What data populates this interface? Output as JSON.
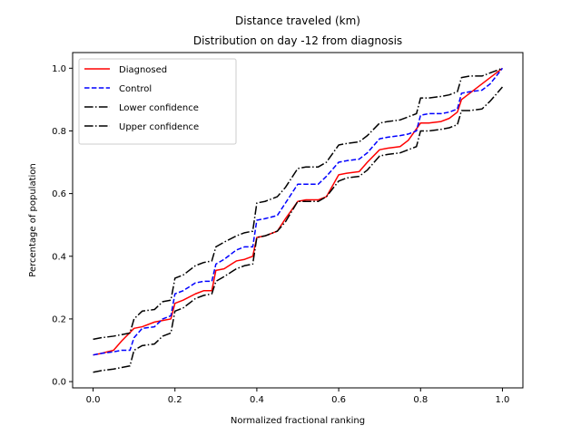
{
  "chart_data": {
    "type": "line",
    "title": "Distance traveled (km)",
    "subtitle": "Distribution on day -12 from diagnosis",
    "xlabel": "Normalized fractional ranking",
    "ylabel": "Percentage of population",
    "xlim": [
      -0.05,
      1.05
    ],
    "ylim": [
      -0.02,
      1.05
    ],
    "xticks": [
      0.0,
      0.2,
      0.4,
      0.6,
      0.8,
      1.0
    ],
    "xtick_labels": [
      "0.0",
      "0.2",
      "0.4",
      "0.6",
      "0.8",
      "1.0"
    ],
    "yticks": [
      0.0,
      0.2,
      0.4,
      0.6,
      0.8,
      1.0
    ],
    "ytick_labels": [
      "0.0",
      "0.2",
      "0.4",
      "0.6",
      "0.8",
      "1.0"
    ],
    "grid": false,
    "legend_position": "top-left",
    "series": [
      {
        "name": "Diagnosed",
        "color": "#ff0000",
        "style": "solid",
        "x": [
          0.0,
          0.02,
          0.05,
          0.07,
          0.1,
          0.12,
          0.15,
          0.17,
          0.19,
          0.2,
          0.22,
          0.25,
          0.27,
          0.29,
          0.3,
          0.32,
          0.35,
          0.37,
          0.39,
          0.4,
          0.42,
          0.45,
          0.47,
          0.5,
          0.52,
          0.55,
          0.57,
          0.6,
          0.62,
          0.65,
          0.67,
          0.7,
          0.72,
          0.75,
          0.77,
          0.8,
          0.82,
          0.85,
          0.87,
          0.89,
          0.9,
          0.92,
          0.95,
          1.0
        ],
        "y": [
          0.085,
          0.09,
          0.1,
          0.13,
          0.17,
          0.175,
          0.19,
          0.195,
          0.2,
          0.25,
          0.26,
          0.28,
          0.29,
          0.29,
          0.355,
          0.36,
          0.385,
          0.39,
          0.4,
          0.46,
          0.465,
          0.48,
          0.52,
          0.575,
          0.58,
          0.58,
          0.59,
          0.66,
          0.665,
          0.67,
          0.7,
          0.74,
          0.745,
          0.75,
          0.77,
          0.825,
          0.825,
          0.83,
          0.84,
          0.86,
          0.9,
          0.92,
          0.95,
          1.0
        ]
      },
      {
        "name": "Control",
        "color": "#0000ff",
        "style": "dashed",
        "x": [
          0.0,
          0.02,
          0.05,
          0.07,
          0.09,
          0.1,
          0.12,
          0.15,
          0.17,
          0.19,
          0.2,
          0.22,
          0.25,
          0.27,
          0.29,
          0.3,
          0.32,
          0.35,
          0.37,
          0.39,
          0.4,
          0.42,
          0.45,
          0.47,
          0.5,
          0.52,
          0.55,
          0.57,
          0.6,
          0.62,
          0.65,
          0.67,
          0.7,
          0.72,
          0.75,
          0.77,
          0.79,
          0.8,
          0.82,
          0.85,
          0.87,
          0.89,
          0.9,
          0.92,
          0.95,
          0.97,
          1.0
        ],
        "y": [
          0.085,
          0.09,
          0.095,
          0.1,
          0.1,
          0.14,
          0.17,
          0.175,
          0.2,
          0.21,
          0.28,
          0.29,
          0.315,
          0.32,
          0.32,
          0.375,
          0.39,
          0.42,
          0.43,
          0.43,
          0.515,
          0.52,
          0.53,
          0.57,
          0.63,
          0.63,
          0.63,
          0.655,
          0.7,
          0.705,
          0.71,
          0.73,
          0.775,
          0.78,
          0.785,
          0.79,
          0.8,
          0.85,
          0.855,
          0.855,
          0.86,
          0.87,
          0.92,
          0.925,
          0.93,
          0.95,
          1.0
        ]
      },
      {
        "name": "Lower confidence",
        "color": "#000000",
        "style": "dashdot",
        "x": [
          0.0,
          0.02,
          0.05,
          0.07,
          0.09,
          0.1,
          0.12,
          0.15,
          0.17,
          0.19,
          0.2,
          0.22,
          0.25,
          0.27,
          0.29,
          0.3,
          0.32,
          0.35,
          0.37,
          0.39,
          0.4,
          0.42,
          0.45,
          0.47,
          0.5,
          0.52,
          0.55,
          0.57,
          0.6,
          0.62,
          0.65,
          0.67,
          0.7,
          0.72,
          0.75,
          0.77,
          0.79,
          0.8,
          0.82,
          0.85,
          0.87,
          0.89,
          0.9,
          0.92,
          0.95,
          0.97,
          1.0
        ],
        "y": [
          0.03,
          0.035,
          0.04,
          0.045,
          0.05,
          0.1,
          0.115,
          0.12,
          0.145,
          0.155,
          0.225,
          0.235,
          0.265,
          0.275,
          0.28,
          0.32,
          0.335,
          0.36,
          0.37,
          0.375,
          0.46,
          0.465,
          0.48,
          0.51,
          0.575,
          0.575,
          0.575,
          0.59,
          0.64,
          0.65,
          0.655,
          0.675,
          0.72,
          0.725,
          0.73,
          0.74,
          0.75,
          0.8,
          0.8,
          0.805,
          0.81,
          0.82,
          0.865,
          0.865,
          0.87,
          0.895,
          0.94
        ]
      },
      {
        "name": "Upper confidence",
        "color": "#000000",
        "style": "dashdot",
        "x": [
          0.0,
          0.02,
          0.05,
          0.07,
          0.09,
          0.1,
          0.12,
          0.15,
          0.17,
          0.19,
          0.2,
          0.22,
          0.25,
          0.27,
          0.29,
          0.3,
          0.32,
          0.35,
          0.37,
          0.39,
          0.4,
          0.42,
          0.45,
          0.47,
          0.5,
          0.52,
          0.55,
          0.57,
          0.6,
          0.62,
          0.65,
          0.67,
          0.7,
          0.72,
          0.75,
          0.77,
          0.79,
          0.8,
          0.82,
          0.85,
          0.87,
          0.89,
          0.9,
          0.92,
          0.95,
          0.97,
          1.0
        ],
        "y": [
          0.135,
          0.14,
          0.145,
          0.15,
          0.155,
          0.2,
          0.225,
          0.23,
          0.255,
          0.26,
          0.33,
          0.34,
          0.37,
          0.38,
          0.385,
          0.43,
          0.445,
          0.465,
          0.475,
          0.48,
          0.57,
          0.575,
          0.59,
          0.62,
          0.68,
          0.685,
          0.685,
          0.7,
          0.755,
          0.76,
          0.765,
          0.785,
          0.825,
          0.83,
          0.835,
          0.845,
          0.855,
          0.905,
          0.905,
          0.91,
          0.915,
          0.925,
          0.97,
          0.975,
          0.975,
          0.985,
          1.0
        ]
      }
    ]
  }
}
